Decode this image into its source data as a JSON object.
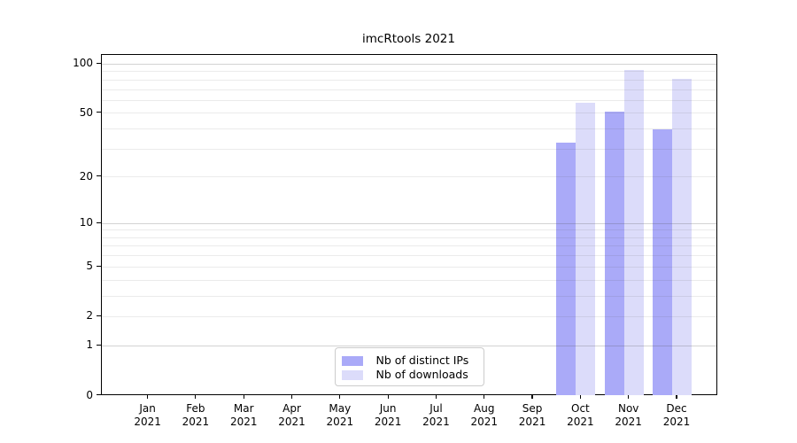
{
  "chart_data": {
    "type": "bar",
    "title": "imcRtools 2021",
    "categories": [
      "Jan 2021",
      "Feb 2021",
      "Mar 2021",
      "Apr 2021",
      "May 2021",
      "Jun 2021",
      "Jul 2021",
      "Aug 2021",
      "Sep 2021",
      "Oct 2021",
      "Nov 2021",
      "Dec 2021"
    ],
    "series": [
      {
        "name": "Nb of distinct IPs",
        "color": "#aaaaf8",
        "values": [
          null,
          null,
          null,
          null,
          null,
          null,
          null,
          null,
          null,
          33,
          51,
          40
        ]
      },
      {
        "name": "Nb of downloads",
        "color": "#dcdcfa",
        "values": [
          null,
          null,
          null,
          null,
          null,
          null,
          null,
          null,
          null,
          58,
          92,
          81
        ]
      }
    ],
    "y_axis": {
      "scale": "log1p",
      "tick_values": [
        0,
        1,
        2,
        5,
        10,
        20,
        50,
        100
      ],
      "tick_labels": [
        "0",
        "1",
        "2",
        "5",
        "10",
        "20",
        "50",
        "100"
      ],
      "range": [
        0,
        110
      ]
    },
    "grid": {
      "on": true,
      "major_values": [
        1,
        10,
        100
      ],
      "minor_values": [
        2,
        3,
        4,
        5,
        6,
        7,
        8,
        9,
        20,
        30,
        40,
        50,
        60,
        70,
        80,
        90
      ]
    },
    "legend": {
      "position": "bottom-center"
    },
    "xlabel": "",
    "ylabel": ""
  }
}
